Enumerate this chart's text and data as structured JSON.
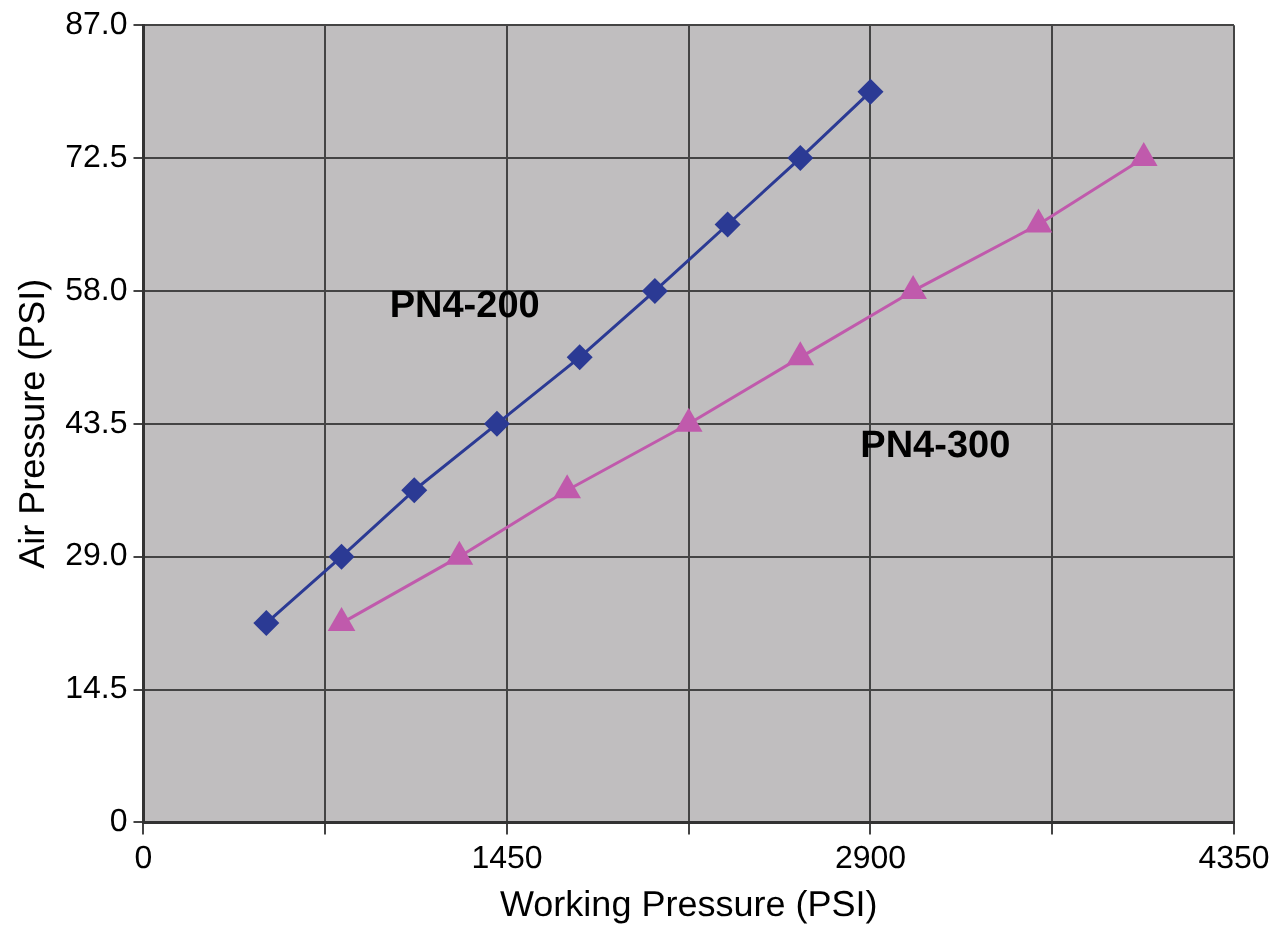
{
  "chart_data": {
    "type": "line",
    "xlabel": "Working Pressure (PSI)",
    "ylabel": "Air Pressure (PSI)",
    "xlim": [
      0,
      4350
    ],
    "xticks": [
      0,
      {
        "value": 725,
        "label": null
      },
      1450,
      {
        "value": 2175,
        "label": null
      },
      2900,
      {
        "value": 3625,
        "label": null
      },
      4350
    ],
    "ylim": [
      0,
      87
    ],
    "yticks": [
      0,
      14.5,
      {
        "value": 29,
        "label": "29.0"
      },
      43.5,
      {
        "value": 58,
        "label": "58.0"
      },
      72.5,
      {
        "value": 87,
        "label": "87.0"
      }
    ],
    "grid": true,
    "legend": false,
    "series": [
      {
        "name": "PN4-200",
        "color": "#2b3a94",
        "marker": "diamond",
        "x": [
          490,
          790,
          1080,
          1410,
          1740,
          2040,
          2330,
          2620,
          2900
        ],
        "values": [
          21.75,
          29,
          36.25,
          43.5,
          50.75,
          58,
          65.25,
          72.5,
          79.75
        ]
      },
      {
        "name": "PN4-300",
        "color": "#c05aac",
        "marker": "triangle",
        "x": [
          790,
          1260,
          1690,
          2175,
          2620,
          3070,
          3570,
          3990
        ],
        "values": [
          21.75,
          29,
          36.25,
          43.5,
          50.75,
          58,
          65.25,
          72.5
        ]
      }
    ]
  }
}
